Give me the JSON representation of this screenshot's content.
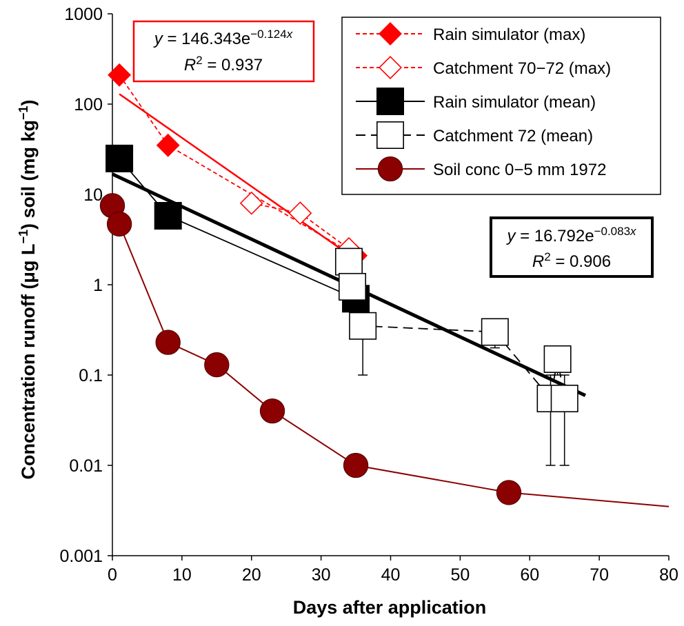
{
  "chart_data": {
    "type": "scatter",
    "title": "",
    "xlabel": "Days after application",
    "ylabel": {
      "parts": [
        "Concentration runoff (μg L",
        "−1",
        ") soil (mg kg",
        "−1",
        ")"
      ]
    },
    "xlim": [
      0,
      80
    ],
    "ylim": [
      0.001,
      1000
    ],
    "yscale": "log",
    "xticks": [
      0,
      10,
      20,
      30,
      40,
      50,
      60,
      70,
      80
    ],
    "xtick_labels": [
      "0",
      "10",
      "20",
      "30",
      "40",
      "50",
      "60",
      "70",
      "80"
    ],
    "yticks": [
      0.001,
      0.01,
      0.1,
      1,
      10,
      100,
      1000
    ],
    "ytick_labels": [
      "0.001",
      "0.01",
      "0.1",
      "1",
      "10",
      "100",
      "1000"
    ],
    "series": [
      {
        "name": "Rain simulator (max)",
        "color": "#ff0000",
        "line": "dashed",
        "marker": "diamond-filled",
        "x": [
          1,
          8,
          35
        ],
        "y": [
          210,
          35,
          2.1
        ]
      },
      {
        "name": "Catchment 70−72 (max)",
        "color": "#ff0000",
        "line": "dashed",
        "marker": "diamond-open",
        "x": [
          20,
          27,
          34
        ],
        "y": [
          8,
          6.2,
          2.5
        ]
      },
      {
        "name": "Rain simulator (mean)",
        "color": "#000000",
        "line": "solid",
        "marker": "square-filled",
        "x": [
          1,
          8,
          35
        ],
        "y": [
          25,
          5.8,
          0.7
        ]
      },
      {
        "name": "Catchment 72 (mean)",
        "color": "#000000",
        "line": "longdash",
        "marker": "square-open",
        "x": [
          34,
          34.5,
          36,
          55,
          63,
          64,
          65
        ],
        "y": [
          1.8,
          0.95,
          0.35,
          0.3,
          0.055,
          0.15,
          0.055
        ],
        "error_low": [
          null,
          null,
          0.1,
          0.2,
          0.01,
          0.1,
          0.01
        ],
        "error_high": [
          null,
          null,
          0.6,
          0.4,
          0.1,
          0.2,
          0.1
        ]
      },
      {
        "name": "Soil conc 0−5 mm 1972",
        "color": "#8b0000",
        "line": "solid",
        "marker": "circle-filled",
        "x": [
          0,
          1,
          8,
          15,
          23,
          35,
          57,
          80
        ],
        "y": [
          7.5,
          4.7,
          0.23,
          0.13,
          0.04,
          0.01,
          0.005,
          0.0035
        ],
        "marker_mask": [
          true,
          true,
          true,
          true,
          true,
          true,
          true,
          false
        ]
      }
    ],
    "fits": [
      {
        "name": "fit-max",
        "color": "#ff0000",
        "a": 146.343,
        "b": 0.124,
        "x_range": [
          1,
          35
        ],
        "equation_prefix": "y",
        "equation_mid": " = 146.343e",
        "exponent": "−0.124",
        "exponent_var": "x",
        "r2_prefix": "R",
        "r2_sup": "2",
        "r2_value": " = 0.937"
      },
      {
        "name": "fit-mean",
        "color": "#000000",
        "a": 16.792,
        "b": 0.083,
        "x_range": [
          0,
          68
        ],
        "equation_prefix": "y",
        "equation_mid": " = 16.792e",
        "exponent": "−0.083",
        "exponent_var": "x",
        "r2_prefix": "R",
        "r2_sup": "2",
        "r2_value": " = 0.906"
      }
    ],
    "legend_position": "top-right"
  }
}
